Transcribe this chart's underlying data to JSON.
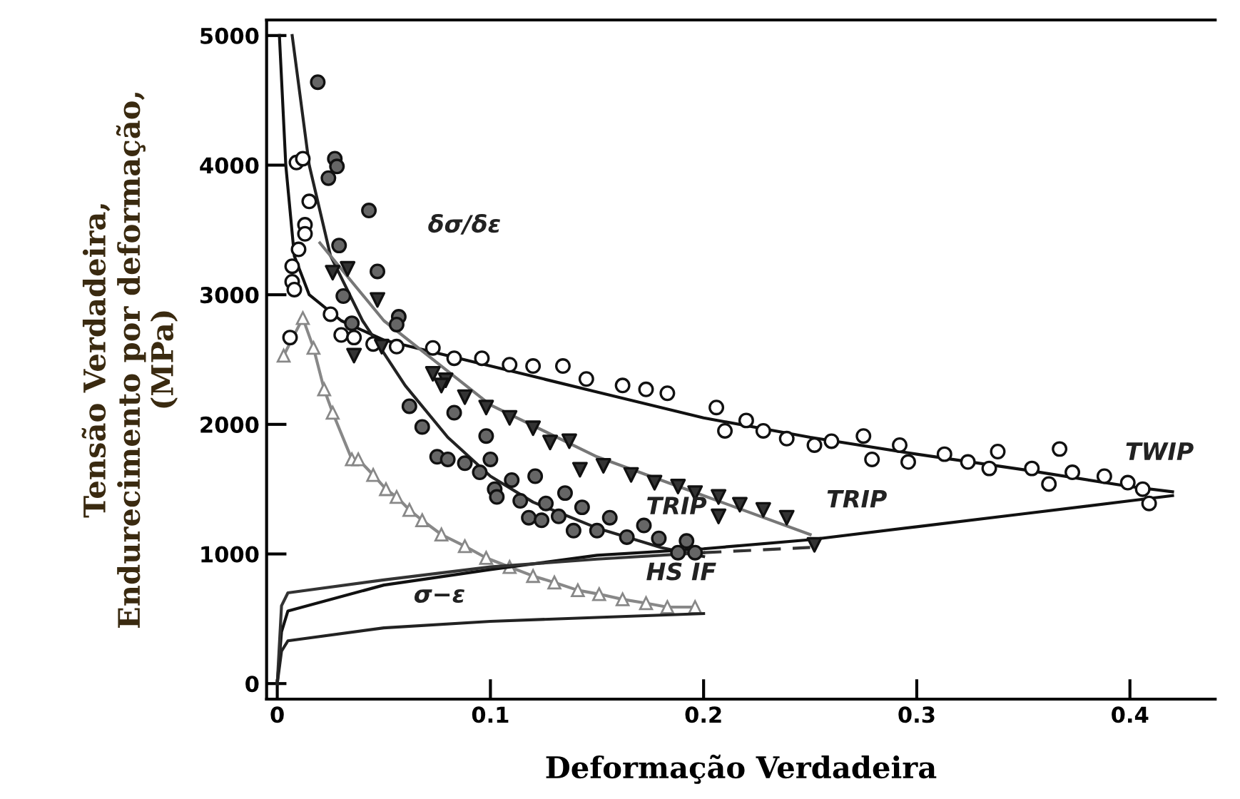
{
  "chart_data": {
    "type": "scatter",
    "xlabel": "Deformação Verdadeira",
    "ylabel": "Tensão Verdadeira,\nEndurecimento por deformação,\n(MPa)",
    "xlim": [
      -0.005,
      0.44
    ],
    "ylim": [
      -120,
      5120
    ],
    "xticks": [
      0,
      0.1,
      0.2,
      0.3,
      0.4
    ],
    "yticks": [
      0,
      1000,
      2000,
      3000,
      4000,
      5000
    ],
    "grid": false,
    "legend": false,
    "series": [
      {
        "type": "line",
        "color": "#111111",
        "line_style": "solid",
        "marker": "none",
        "x": [
          0.001,
          0.004,
          0.008,
          0.015,
          0.03,
          0.05,
          0.1,
          0.15,
          0.2,
          0.25,
          0.3,
          0.35,
          0.4,
          0.42
        ],
        "values": [
          5000,
          4000,
          3300,
          3000,
          2800,
          2650,
          2450,
          2250,
          2050,
          1900,
          1770,
          1650,
          1520,
          1480
        ]
      },
      {
        "type": "line",
        "color": "#222222",
        "line_style": "solid",
        "marker": "none",
        "x": [
          0.007,
          0.015,
          0.025,
          0.04,
          0.06,
          0.08,
          0.1,
          0.12,
          0.15,
          0.18,
          0.2
        ],
        "values": [
          5000,
          4000,
          3300,
          2800,
          2300,
          1900,
          1600,
          1400,
          1200,
          1050,
          980
        ]
      },
      {
        "type": "line",
        "color": "#777777",
        "line_style": "solid",
        "marker": "none",
        "x": [
          0.02,
          0.05,
          0.1,
          0.15,
          0.2,
          0.25
        ],
        "values": [
          3400,
          2800,
          2150,
          1750,
          1450,
          1150
        ]
      },
      {
        "color": "#ffffff",
        "marker": "circle",
        "x": [
          0.009,
          0.012,
          0.015,
          0.013,
          0.013,
          0.01,
          0.007,
          0.007,
          0.008,
          0.006,
          0.025,
          0.03,
          0.036,
          0.045,
          0.056,
          0.073,
          0.083,
          0.096,
          0.109,
          0.12,
          0.134,
          0.145,
          0.162,
          0.173,
          0.183,
          0.206,
          0.21,
          0.22,
          0.228,
          0.239,
          0.252,
          0.26,
          0.275,
          0.279,
          0.292,
          0.296,
          0.313,
          0.324,
          0.334,
          0.338,
          0.354,
          0.367,
          0.362,
          0.373,
          0.388,
          0.399,
          0.406,
          0.409
        ],
        "values": [
          4020,
          4050,
          3720,
          3540,
          3470,
          3350,
          3220,
          3100,
          3040,
          2670,
          2850,
          2690,
          2670,
          2620,
          2600,
          2590,
          2510,
          2510,
          2460,
          2450,
          2450,
          2350,
          2300,
          2270,
          2240,
          2130,
          1950,
          2030,
          1950,
          1890,
          1840,
          1870,
          1910,
          1730,
          1840,
          1710,
          1770,
          1710,
          1660,
          1790,
          1660,
          1810,
          1540,
          1630,
          1600,
          1550,
          1500,
          1390
        ]
      },
      {
        "color": "#666666",
        "marker": "circle",
        "x": [
          0.019,
          0.027,
          0.028,
          0.024,
          0.043,
          0.029,
          0.047,
          0.031,
          0.035,
          0.057,
          0.056,
          0.062,
          0.068,
          0.083,
          0.098,
          0.075,
          0.08,
          0.088,
          0.1,
          0.095,
          0.102,
          0.103,
          0.11,
          0.121,
          0.114,
          0.126,
          0.118,
          0.124,
          0.135,
          0.132,
          0.143,
          0.139,
          0.15,
          0.156,
          0.164,
          0.172,
          0.179,
          0.192,
          0.188,
          0.196
        ],
        "values": [
          4640,
          4050,
          3990,
          3900,
          3650,
          3380,
          3180,
          2990,
          2780,
          2830,
          2770,
          2140,
          1980,
          2090,
          1910,
          1750,
          1730,
          1700,
          1730,
          1630,
          1500,
          1440,
          1570,
          1600,
          1410,
          1390,
          1280,
          1260,
          1470,
          1290,
          1360,
          1180,
          1180,
          1280,
          1130,
          1220,
          1120,
          1100,
          1010,
          1010
        ]
      },
      {
        "color": "#333333",
        "marker": "triangle_down",
        "x": [
          0.026,
          0.033,
          0.047,
          0.036,
          0.049,
          0.073,
          0.079,
          0.077,
          0.088,
          0.098,
          0.109,
          0.12,
          0.137,
          0.128,
          0.142,
          0.153,
          0.166,
          0.177,
          0.188,
          0.196,
          0.207,
          0.207,
          0.217,
          0.228,
          0.239,
          0.252
        ],
        "values": [
          3170,
          3200,
          2960,
          2530,
          2600,
          2390,
          2340,
          2300,
          2210,
          2130,
          2050,
          1970,
          1870,
          1860,
          1650,
          1680,
          1610,
          1550,
          1520,
          1470,
          1440,
          1290,
          1380,
          1340,
          1280,
          1070
        ]
      },
      {
        "type": "line",
        "color": "#888888",
        "line_style": "solid",
        "marker": "triangle",
        "x": [
          0.003,
          0.012,
          0.017,
          0.022,
          0.026,
          0.035,
          0.038,
          0.045,
          0.051,
          0.056,
          0.062,
          0.068,
          0.077,
          0.088,
          0.098,
          0.109,
          0.12,
          0.13,
          0.141,
          0.151,
          0.162,
          0.173,
          0.183,
          0.196
        ],
        "values": [
          2530,
          2820,
          2590,
          2270,
          2090,
          1730,
          1730,
          1610,
          1500,
          1440,
          1340,
          1260,
          1150,
          1060,
          970,
          900,
          830,
          780,
          720,
          690,
          650,
          620,
          590,
          590
        ]
      },
      {
        "type": "line",
        "color": "#111111",
        "line_style": "solid",
        "marker": "none",
        "x": [
          0,
          0.002,
          0.005,
          0.05,
          0.1,
          0.15,
          0.2,
          0.25,
          0.3,
          0.35,
          0.4,
          0.42
        ],
        "values": [
          0,
          400,
          560,
          760,
          880,
          990,
          1040,
          1110,
          1210,
          1310,
          1410,
          1450
        ]
      },
      {
        "type": "line",
        "color": "#333333",
        "line_style": "solid",
        "marker": "none",
        "x": [
          0,
          0.002,
          0.005,
          0.05,
          0.1,
          0.15,
          0.2
        ],
        "values": [
          0,
          600,
          700,
          800,
          900,
          960,
          1010
        ]
      },
      {
        "type": "line",
        "color": "#333333",
        "line_style": "dashed",
        "marker": "none",
        "x": [
          0.2,
          0.25
        ],
        "values": [
          1010,
          1050
        ]
      },
      {
        "type": "line",
        "color": "#222222",
        "line_style": "solid",
        "marker": "none",
        "x": [
          0,
          0.002,
          0.005,
          0.05,
          0.1,
          0.15,
          0.2
        ],
        "values": [
          0,
          250,
          330,
          430,
          480,
          510,
          540
        ]
      }
    ],
    "annotations": [
      "δσ/δε",
      "TWIP",
      "TRIP",
      "TRIP",
      "HS IF",
      "σ−ε"
    ]
  }
}
